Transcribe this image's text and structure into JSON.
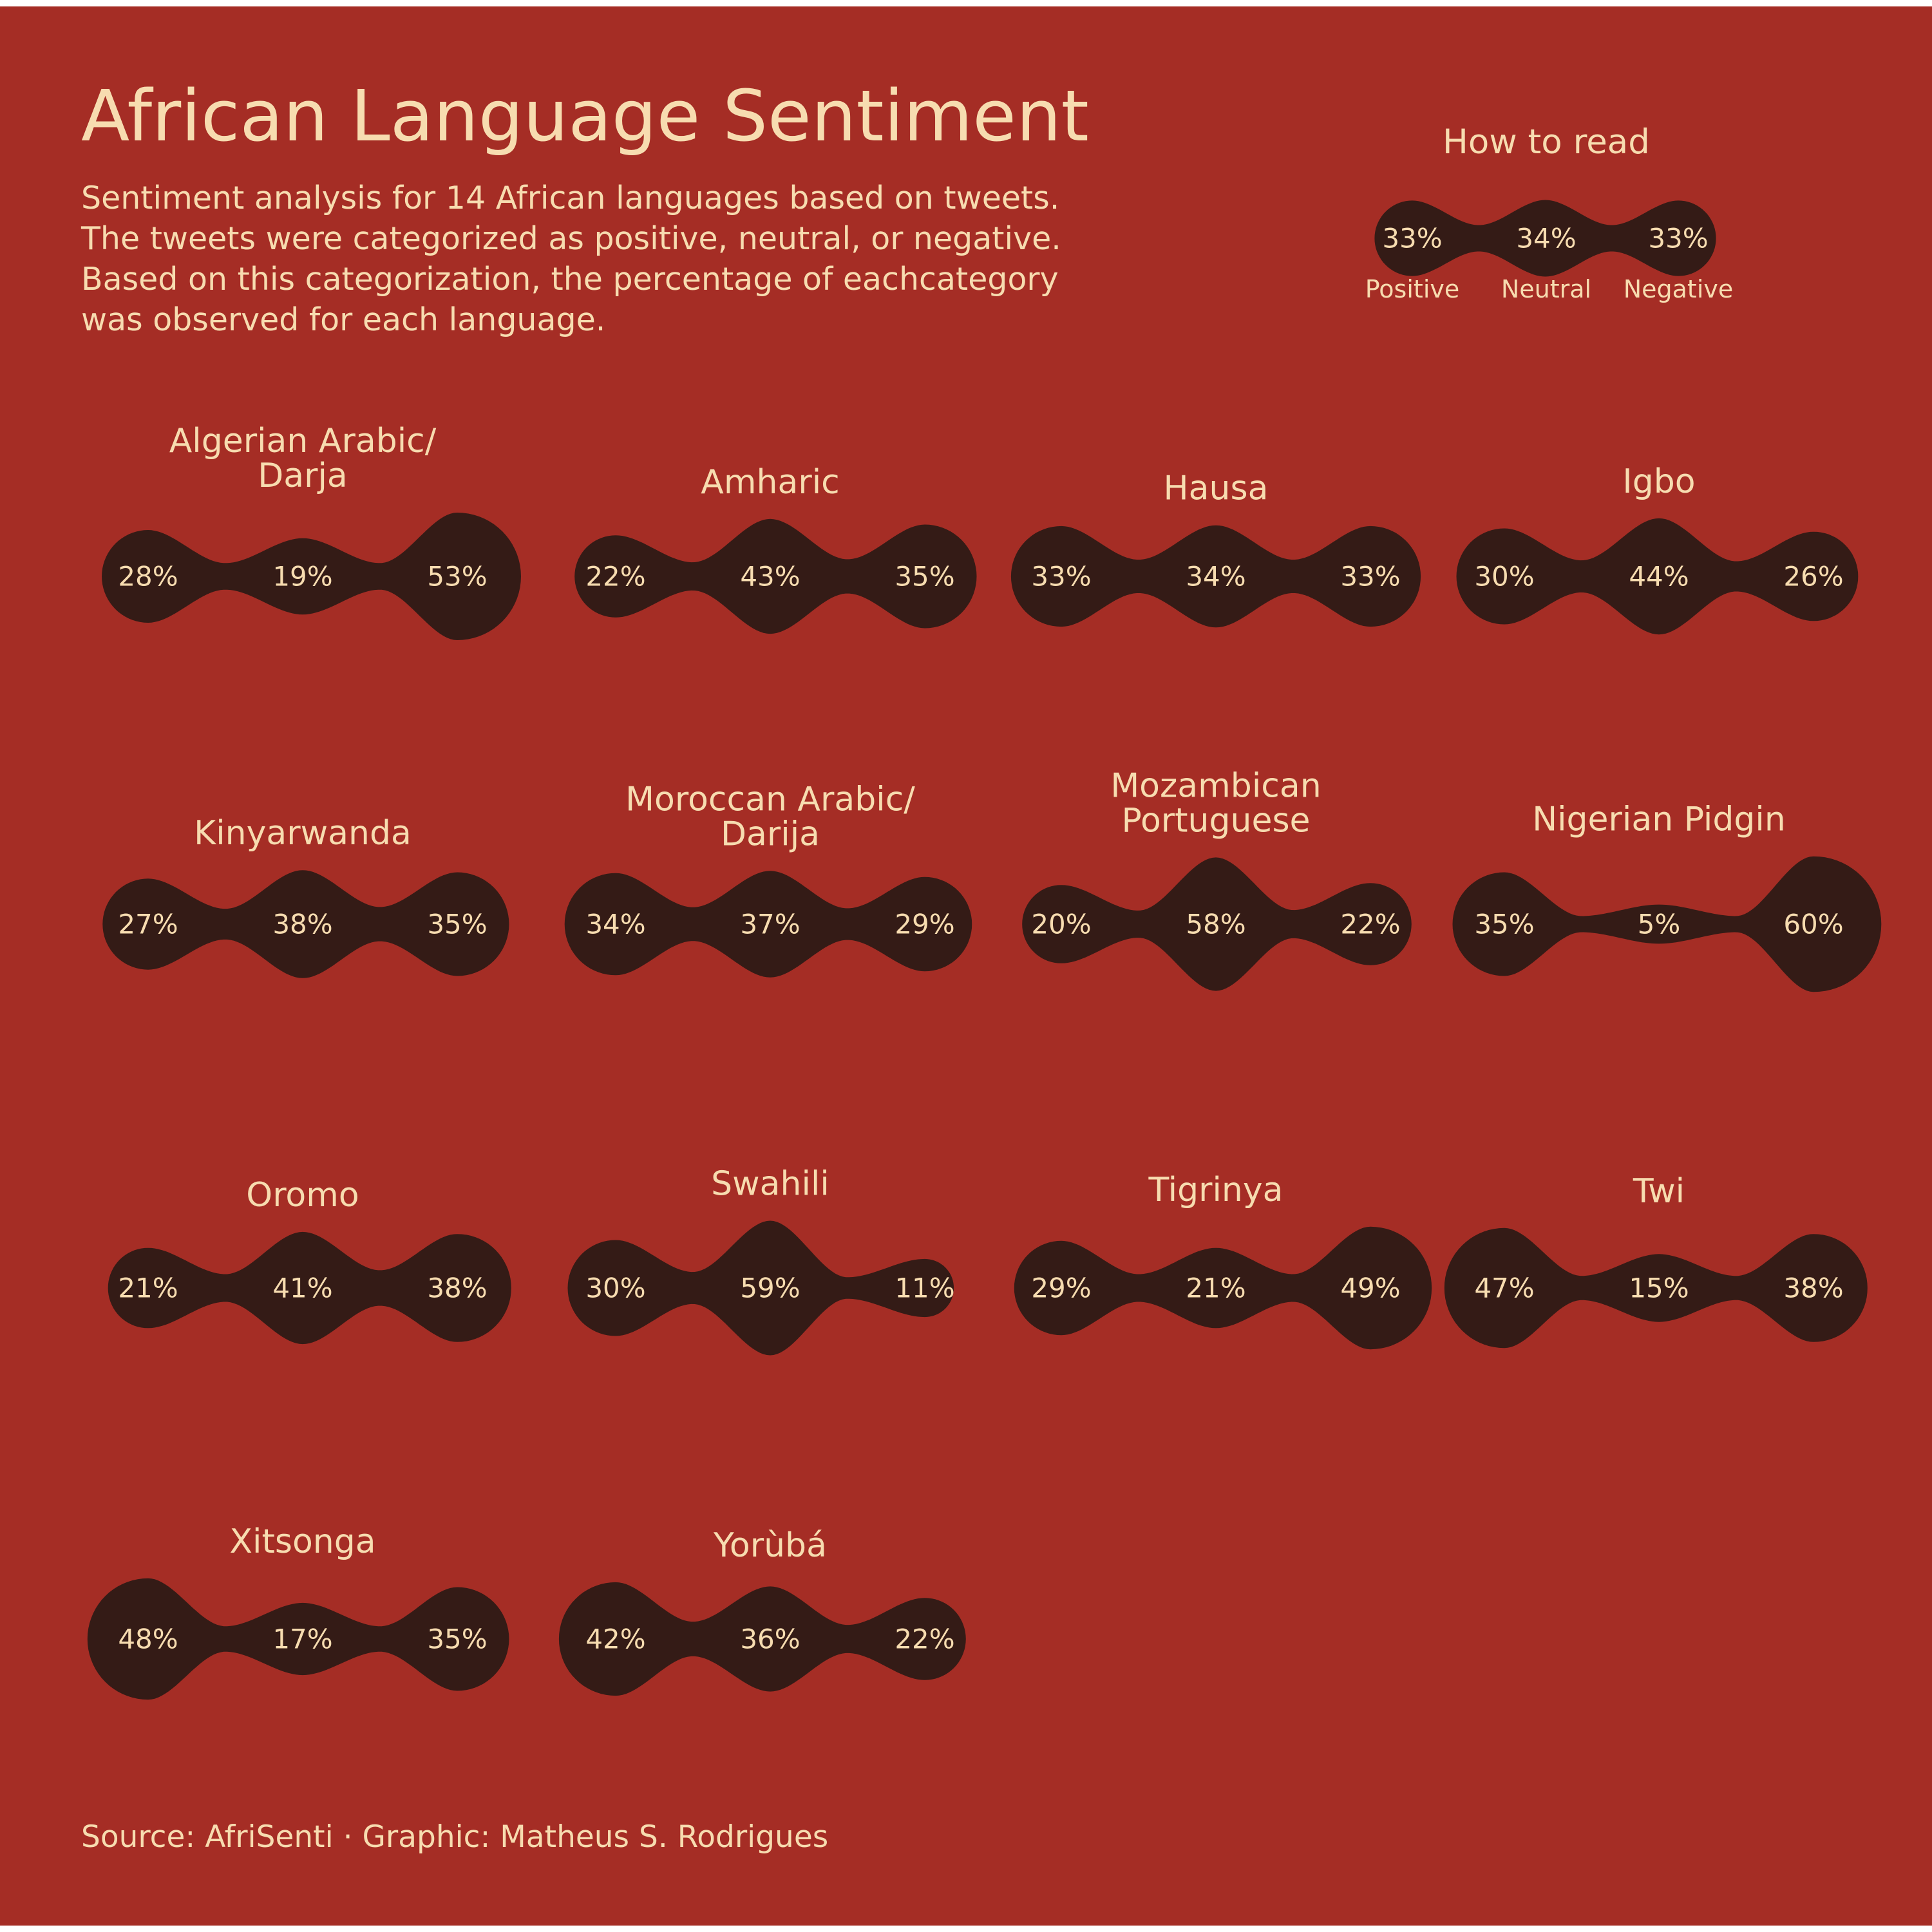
{
  "title": "African Language Sentiment",
  "subtitle_lines": [
    "Sentiment analysis for 14 African languages based on tweets.",
    "The tweets were categorized as positive, neutral, or negative.",
    "Based on this categorization, the percentage of eachcategory",
    "was observed for each language."
  ],
  "legend": {
    "title": "How to read",
    "values": [
      "33%",
      "34%",
      "33%"
    ],
    "labels": [
      "Positive",
      "Neutral",
      "Negative"
    ]
  },
  "source": "Source: AfriSenti · Graphic: Matheus S. Rodrigues",
  "colors": {
    "background": "#a52d25",
    "shape": "#341b16",
    "text": "#f7dcb0"
  },
  "chart_data": {
    "type": "small-multiples",
    "categories": [
      "Positive",
      "Neutral",
      "Negative"
    ],
    "languages": [
      {
        "name": [
          "Algerian Arabic/",
          "Darja"
        ],
        "values": [
          28,
          19,
          53
        ]
      },
      {
        "name": [
          "Amharic"
        ],
        "values": [
          22,
          43,
          35
        ]
      },
      {
        "name": [
          "Hausa"
        ],
        "values": [
          33,
          34,
          33
        ]
      },
      {
        "name": [
          "Igbo"
        ],
        "values": [
          30,
          44,
          26
        ]
      },
      {
        "name": [
          "Kinyarwanda"
        ],
        "values": [
          27,
          38,
          35
        ]
      },
      {
        "name": [
          "Moroccan Arabic/",
          "Darija"
        ],
        "values": [
          34,
          37,
          29
        ]
      },
      {
        "name": [
          "Mozambican",
          "Portuguese"
        ],
        "values": [
          20,
          58,
          22
        ]
      },
      {
        "name": [
          "Nigerian Pidgin"
        ],
        "values": [
          35,
          5,
          60
        ]
      },
      {
        "name": [
          "Oromo"
        ],
        "values": [
          21,
          41,
          38
        ]
      },
      {
        "name": [
          "Swahili"
        ],
        "values": [
          30,
          59,
          11
        ]
      },
      {
        "name": [
          "Tigrinya"
        ],
        "values": [
          29,
          21,
          49
        ]
      },
      {
        "name": [
          "Twi"
        ],
        "values": [
          47,
          15,
          38
        ]
      },
      {
        "name": [
          "Xitsonga"
        ],
        "values": [
          48,
          17,
          35
        ]
      },
      {
        "name": [
          "Yorùbá"
        ],
        "values": [
          42,
          36,
          22
        ]
      }
    ]
  }
}
